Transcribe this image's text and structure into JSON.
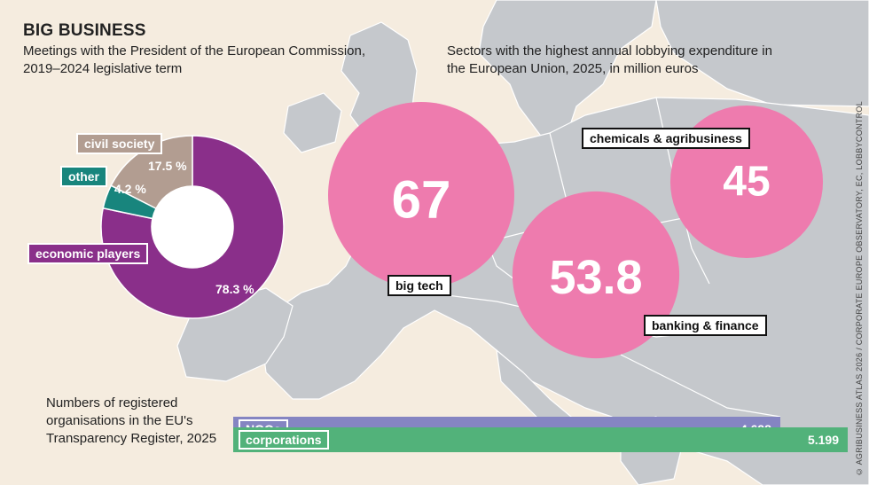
{
  "title": "BIG BUSINESS",
  "credit": "© AGRIBUSINESS ATLAS 2026 / CORPORATE EUROPE OBSERVATORY, EC, LOBBYCONTROL",
  "colors": {
    "background": "#f5ecdf",
    "map_land": "#c5c8cc",
    "economic_players": "#8a2f8a",
    "civil_society": "#b29d91",
    "other": "#18857d",
    "bubble": "#ee7bae",
    "ngos_bar": "#8585c2",
    "corporations_bar": "#52b27a"
  },
  "chart_data": [
    {
      "type": "pie",
      "title": "Meetings with the President of the European Commission, 2019–2024 legislative term",
      "slices": [
        {
          "label": "economic players",
          "value": 78.3,
          "display": "78.3 %"
        },
        {
          "label": "civil society",
          "value": 17.5,
          "display": "17.5 %"
        },
        {
          "label": "other",
          "value": 4.2,
          "display": "4.2 %"
        }
      ]
    },
    {
      "type": "scatter",
      "title": "Sectors with the highest annual lobbying expenditure in the European Union, 2025, in million euros",
      "categories": [
        "big tech",
        "banking & finance",
        "chemicals & agribusiness"
      ],
      "values": [
        67,
        53.8,
        45
      ],
      "displays": [
        "67",
        "53.8",
        "45"
      ]
    },
    {
      "type": "bar",
      "title": "Numbers of registered organisations in the EU's Transparency Register, 2025",
      "categories": [
        "NGOs",
        "corporations"
      ],
      "values": [
        4628,
        5199
      ],
      "displays": [
        "4.628",
        "5.199"
      ]
    }
  ]
}
